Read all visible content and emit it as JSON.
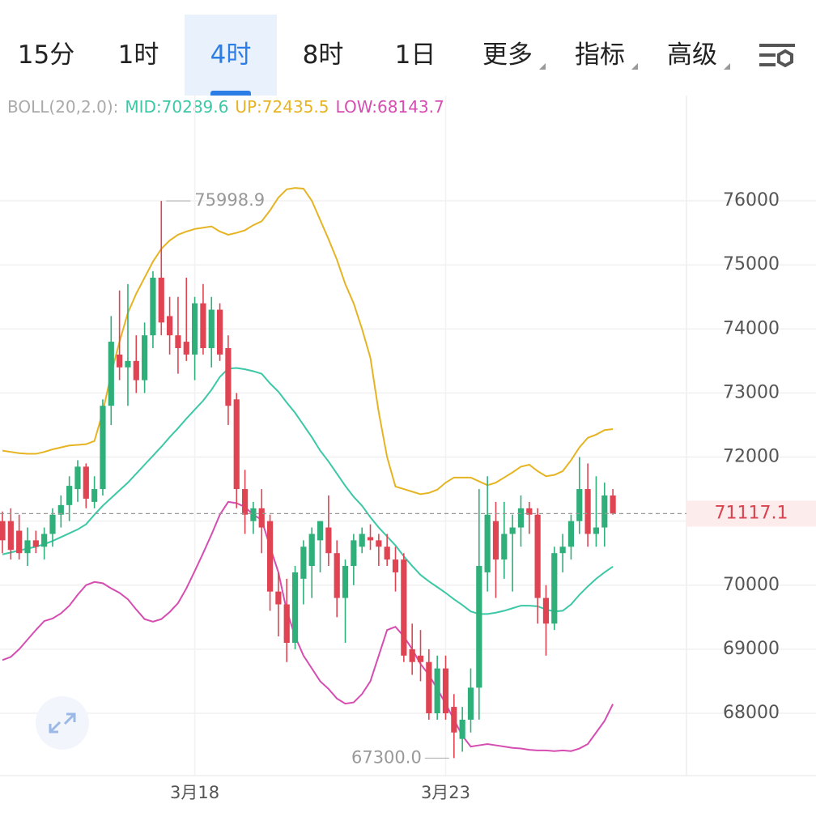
{
  "tabs": [
    "15分",
    "1时",
    "4时",
    "8时",
    "1日",
    "更多",
    "指标",
    "高级"
  ],
  "active_tab": 2,
  "chart_data": {
    "type": "candlestick",
    "indicator": "BOLL(20,2.0):",
    "up_color": "#2fb07a",
    "down_color": "#e04452",
    "categories": [
      null,
      null,
      null,
      null,
      null,
      null,
      null,
      null,
      null,
      null,
      null,
      null,
      null,
      null,
      null,
      null,
      null,
      null,
      null,
      null,
      null,
      null,
      null,
      "3月18",
      null,
      null,
      null,
      null,
      null,
      null,
      null,
      null,
      null,
      null,
      null,
      null,
      null,
      null,
      null,
      null,
      null,
      null,
      null,
      null,
      null,
      null,
      null,
      null,
      null,
      null,
      null,
      null,
      null,
      "3月23",
      null,
      null,
      null,
      null,
      null,
      null,
      null,
      null,
      null,
      null,
      null,
      null,
      null,
      null,
      null,
      null,
      null,
      null,
      null,
      null
    ],
    "ohlc": [
      [
        71000,
        71150,
        70500,
        70700
      ],
      [
        71000,
        71200,
        70400,
        70550
      ],
      [
        70850,
        71100,
        70400,
        70500
      ],
      [
        70500,
        70900,
        70300,
        70700
      ],
      [
        70700,
        70850,
        70500,
        70600
      ],
      [
        70600,
        70900,
        70400,
        70800
      ],
      [
        70800,
        71200,
        70600,
        71100
      ],
      [
        71100,
        71400,
        70900,
        71250
      ],
      [
        71250,
        71700,
        71000,
        71550
      ],
      [
        71500,
        71950,
        71300,
        71850
      ],
      [
        71850,
        71900,
        71200,
        71350
      ],
      [
        71300,
        71700,
        71200,
        71500
      ],
      [
        71500,
        72900,
        71400,
        72800
      ],
      [
        72800,
        74200,
        72500,
        73800
      ],
      [
        73600,
        74600,
        73200,
        73400
      ],
      [
        73400,
        74700,
        72800,
        73500
      ],
      [
        73500,
        73900,
        73000,
        73200
      ],
      [
        73200,
        74100,
        73000,
        73900
      ],
      [
        73900,
        74900,
        73700,
        74800
      ],
      [
        74800,
        75998.9,
        73900,
        74100
      ],
      [
        74200,
        74500,
        73600,
        73900
      ],
      [
        73900,
        74500,
        73300,
        73700
      ],
      [
        73800,
        74800,
        73500,
        73600
      ],
      [
        73600,
        74500,
        73200,
        74400
      ],
      [
        74400,
        74700,
        73600,
        73700
      ],
      [
        73700,
        74500,
        73400,
        74300
      ],
      [
        74300,
        74400,
        73500,
        73600
      ],
      [
        73700,
        73900,
        72500,
        72800
      ],
      [
        72900,
        73000,
        71200,
        71500
      ],
      [
        71500,
        71800,
        70800,
        71100
      ],
      [
        71000,
        71300,
        70800,
        71200
      ],
      [
        71200,
        71500,
        70500,
        70900
      ],
      [
        71000,
        71100,
        69600,
        69900
      ],
      [
        69900,
        70200,
        69200,
        69700
      ],
      [
        69700,
        70100,
        68800,
        69100
      ],
      [
        69100,
        70300,
        69000,
        70200
      ],
      [
        70100,
        70700,
        69700,
        70600
      ],
      [
        70300,
        70900,
        69800,
        70800
      ],
      [
        70700,
        71000,
        70200,
        71000
      ],
      [
        70900,
        71400,
        70300,
        70500
      ],
      [
        70500,
        70700,
        69500,
        69800
      ],
      [
        69800,
        70400,
        69100,
        70300
      ],
      [
        70300,
        70800,
        70000,
        70700
      ],
      [
        70600,
        70900,
        70500,
        70800
      ],
      [
        70750,
        70950,
        70550,
        70700
      ],
      [
        70700,
        70800,
        70300,
        70600
      ],
      [
        70600,
        70800,
        70300,
        70400
      ],
      [
        70400,
        70600,
        69900,
        70200
      ],
      [
        70400,
        70500,
        68800,
        68900
      ],
      [
        69000,
        69400,
        68600,
        68800
      ],
      [
        68900,
        69300,
        68500,
        68800
      ],
      [
        68800,
        69000,
        67900,
        68000
      ],
      [
        68000,
        68900,
        67900,
        68700
      ],
      [
        68700,
        68900,
        67900,
        68000
      ],
      [
        68100,
        68300,
        67300,
        67700
      ],
      [
        67600,
        68100,
        67400,
        67900
      ],
      [
        67900,
        68700,
        67700,
        68400
      ],
      [
        68400,
        71500,
        67900,
        70300
      ],
      [
        70200,
        71700,
        69900,
        71100
      ],
      [
        71000,
        71300,
        69800,
        70400
      ],
      [
        70400,
        71300,
        70100,
        70800
      ],
      [
        70800,
        71100,
        69900,
        70900
      ],
      [
        70900,
        71400,
        70600,
        71200
      ],
      [
        71200,
        71300,
        70800,
        71100
      ],
      [
        71100,
        71200,
        69400,
        69800
      ],
      [
        69800,
        70000,
        68900,
        69400
      ],
      [
        69400,
        70600,
        69300,
        70500
      ],
      [
        70500,
        70800,
        70200,
        70600
      ],
      [
        70600,
        71100,
        70400,
        71000
      ],
      [
        71000,
        72000,
        70800,
        71500
      ],
      [
        71500,
        71900,
        70600,
        70800
      ],
      [
        70800,
        71700,
        70600,
        70900
      ],
      [
        70900,
        71600,
        70600,
        71400
      ],
      [
        71400,
        71500,
        71100,
        71117.1
      ]
    ],
    "lines": [
      {
        "label": "MID:70289.6",
        "color": "#3cc8a6",
        "values": [
          70480,
          70510,
          70540,
          70570,
          70600,
          70640,
          70690,
          70750,
          70810,
          70870,
          70950,
          71100,
          71240,
          71360,
          71480,
          71600,
          71740,
          71880,
          72020,
          72160,
          72310,
          72450,
          72600,
          72740,
          72880,
          73050,
          73250,
          73380,
          73390,
          73370,
          73340,
          73300,
          73150,
          73020,
          72850,
          72690,
          72500,
          72310,
          72100,
          71930,
          71740,
          71550,
          71380,
          71240,
          71060,
          70900,
          70760,
          70620,
          70450,
          70300,
          70160,
          70060,
          69970,
          69880,
          69780,
          69690,
          69590,
          69550,
          69550,
          69570,
          69600,
          69640,
          69680,
          69680,
          69670,
          69620,
          69590,
          69600,
          69700,
          69850,
          69980,
          70100,
          70200,
          70289.6
        ]
      },
      {
        "label": "UP:72435.5",
        "color": "#e6b422",
        "values": [
          72100,
          72080,
          72060,
          72050,
          72050,
          72080,
          72120,
          72150,
          72180,
          72190,
          72200,
          72250,
          72700,
          73300,
          73800,
          74250,
          74550,
          74800,
          75050,
          75250,
          75380,
          75470,
          75520,
          75560,
          75580,
          75600,
          75520,
          75470,
          75500,
          75540,
          75620,
          75680,
          75850,
          76050,
          76180,
          76200,
          76190,
          76000,
          75700,
          75400,
          75080,
          74700,
          74400,
          74000,
          73550,
          72700,
          72000,
          71540,
          71500,
          71460,
          71420,
          71440,
          71490,
          71600,
          71680,
          71680,
          71680,
          71620,
          71560,
          71600,
          71680,
          71760,
          71850,
          71880,
          71780,
          71700,
          71720,
          71780,
          71950,
          72150,
          72300,
          72350,
          72420,
          72435.5
        ]
      },
      {
        "label": "LOW:68143.7",
        "color": "#d64db1",
        "values": [
          68830,
          68880,
          69000,
          69150,
          69300,
          69440,
          69480,
          69560,
          69680,
          69850,
          70000,
          70050,
          70030,
          69950,
          69880,
          69780,
          69620,
          69470,
          69430,
          69470,
          69580,
          69720,
          69950,
          70220,
          70500,
          70790,
          71100,
          71300,
          71280,
          71220,
          71100,
          71020,
          70600,
          70200,
          69600,
          69200,
          68900,
          68700,
          68500,
          68380,
          68230,
          68150,
          68170,
          68300,
          68500,
          68900,
          69300,
          69350,
          69200,
          69000,
          68770,
          68600,
          68380,
          68150,
          67900,
          67650,
          67480,
          67500,
          67520,
          67500,
          67480,
          67460,
          67450,
          67430,
          67420,
          67420,
          67410,
          67420,
          67410,
          67450,
          67520,
          67700,
          67880,
          68143.7
        ]
      }
    ],
    "annotations": [
      {
        "text": "75998.9",
        "value": 75998.9
      },
      {
        "text": "67300.0",
        "value": 67300
      }
    ],
    "last_price": {
      "value": 71117.1,
      "label": "71117.1"
    },
    "ylim": [
      67027,
      77643
    ],
    "yticks": [
      68000,
      69000,
      70000,
      71000,
      72000,
      73000,
      74000,
      75000,
      76000
    ],
    "grid": true
  }
}
